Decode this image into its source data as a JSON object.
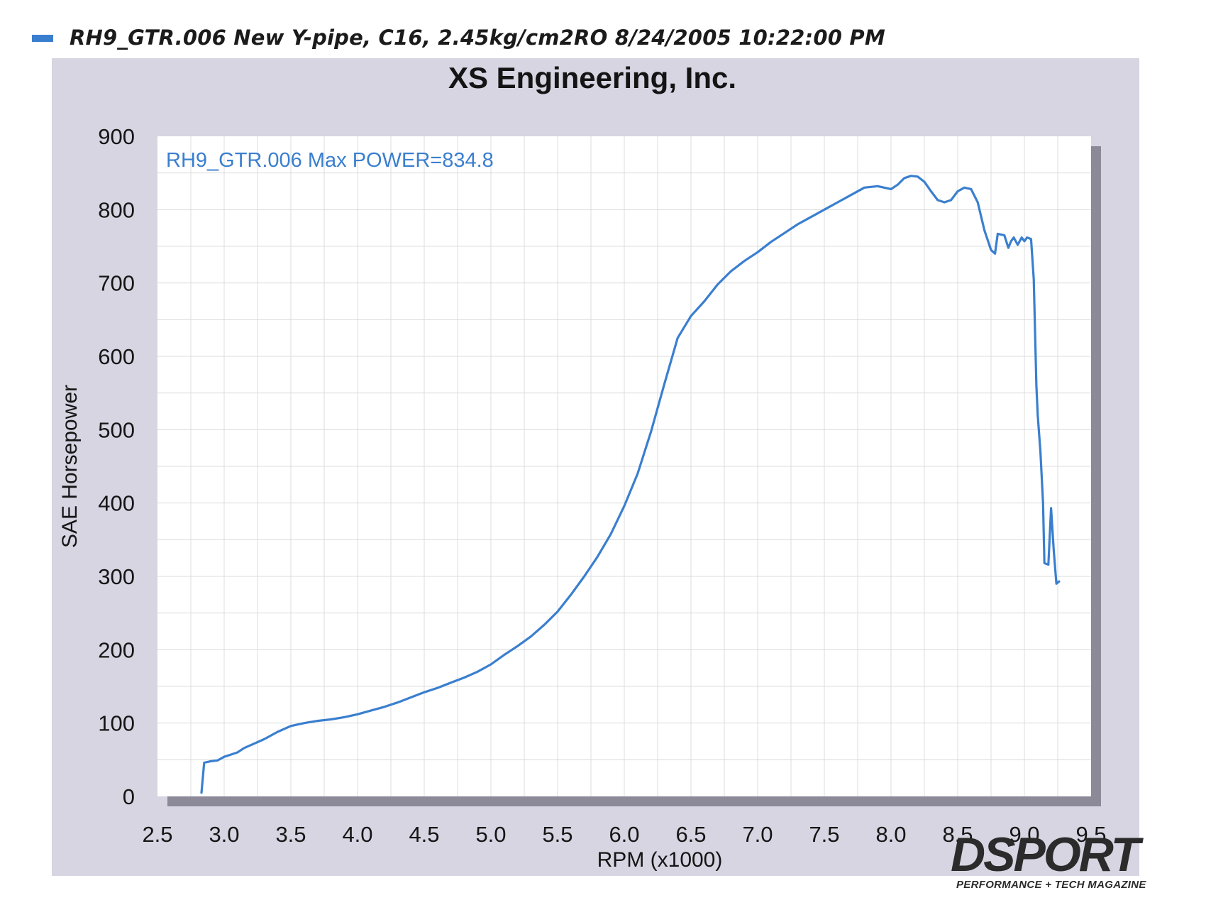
{
  "legend": {
    "swatch_color": "#3a7fcf",
    "text": "RH9_GTR.006   New Y-pipe, C16, 2.45kg/cm2RO  8/24/2005 10:22:00 PM"
  },
  "brand": {
    "name": "DSPORT",
    "tagline": "PERFORMANCE + TECH MAGAZINE"
  },
  "chart_data": {
    "type": "line",
    "title": "XS Engineering, Inc.",
    "xlabel": "RPM (x1000)",
    "ylabel": "SAE Horsepower",
    "annotation": "RH9_GTR.006  Max POWER=834.8",
    "xlim": [
      2.5,
      9.5
    ],
    "ylim": [
      0,
      900
    ],
    "x_ticks": [
      "2.5",
      "3.0",
      "3.5",
      "4.0",
      "4.5",
      "5.0",
      "5.5",
      "6.0",
      "6.5",
      "7.0",
      "7.5",
      "8.0",
      "8.5",
      "9.0",
      "9.5"
    ],
    "y_ticks": [
      "0",
      "100",
      "200",
      "300",
      "400",
      "500",
      "600",
      "700",
      "800",
      "900"
    ],
    "grid": true,
    "line_color": "#3a7fcf",
    "series": [
      {
        "name": "RH9_GTR.006",
        "x": [
          2.83,
          2.85,
          2.9,
          2.95,
          3.0,
          3.05,
          3.1,
          3.15,
          3.2,
          3.3,
          3.4,
          3.5,
          3.6,
          3.7,
          3.8,
          3.9,
          4.0,
          4.1,
          4.2,
          4.3,
          4.4,
          4.5,
          4.6,
          4.7,
          4.8,
          4.9,
          5.0,
          5.1,
          5.2,
          5.3,
          5.4,
          5.5,
          5.6,
          5.7,
          5.8,
          5.9,
          6.0,
          6.1,
          6.2,
          6.3,
          6.4,
          6.5,
          6.6,
          6.7,
          6.8,
          6.9,
          7.0,
          7.1,
          7.2,
          7.3,
          7.4,
          7.5,
          7.6,
          7.7,
          7.8,
          7.9,
          8.0,
          8.05,
          8.1,
          8.15,
          8.2,
          8.25,
          8.3,
          8.35,
          8.4,
          8.45,
          8.5,
          8.55,
          8.6,
          8.65,
          8.7,
          8.75,
          8.78,
          8.8,
          8.85,
          8.88,
          8.9,
          8.92,
          8.95,
          8.98,
          9.0,
          9.02,
          9.05,
          9.07,
          9.09,
          9.1,
          9.12,
          9.14,
          9.15,
          9.18,
          9.2,
          9.22,
          9.24,
          9.26
        ],
        "y": [
          5,
          46,
          48,
          49,
          54,
          57,
          60,
          66,
          70,
          78,
          88,
          96,
          100,
          103,
          105,
          108,
          112,
          117,
          122,
          128,
          135,
          142,
          148,
          155,
          162,
          170,
          180,
          193,
          205,
          218,
          234,
          252,
          275,
          300,
          327,
          358,
          396,
          440,
          497,
          562,
          625,
          655,
          675,
          698,
          716,
          730,
          742,
          756,
          768,
          780,
          790,
          800,
          810,
          820,
          830,
          832,
          828,
          834,
          843,
          846,
          845,
          838,
          825,
          813,
          810,
          813,
          825,
          830,
          828,
          810,
          772,
          745,
          740,
          767,
          765,
          748,
          757,
          762,
          752,
          762,
          757,
          762,
          760,
          705,
          560,
          520,
          470,
          400,
          318,
          316,
          393,
          335,
          290,
          293
        ]
      }
    ]
  }
}
